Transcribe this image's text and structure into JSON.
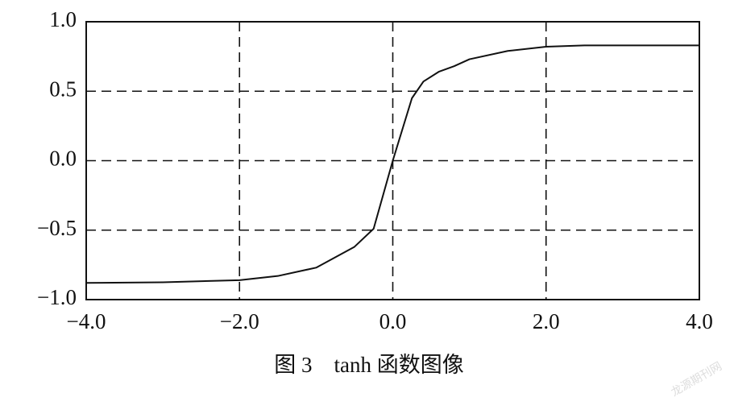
{
  "chart_data": {
    "type": "line",
    "caption": "图 3　tanh 函数图像",
    "watermark": "龙源期刊网",
    "x": [
      -4,
      -3,
      -2,
      -1.5,
      -1,
      -0.5,
      -0.25,
      0,
      0.25,
      0.4,
      0.6,
      0.8,
      1,
      1.5,
      2,
      2.5,
      3,
      4
    ],
    "series": [
      {
        "color": "#111111",
        "values": [
          -0.88,
          -0.875,
          -0.86,
          -0.83,
          -0.77,
          -0.62,
          -0.49,
          0,
          0.45,
          0.57,
          0.64,
          0.68,
          0.73,
          0.79,
          0.82,
          0.83,
          0.83,
          0.83
        ]
      }
    ],
    "xlim": [
      -4,
      4
    ],
    "ylim": [
      -1,
      1
    ],
    "xticks": [
      {
        "value": -4,
        "label": "−4.0"
      },
      {
        "value": -2,
        "label": "−2.0"
      },
      {
        "value": 0,
        "label": "0.0"
      },
      {
        "value": 2,
        "label": "2.0"
      },
      {
        "value": 4,
        "label": "4.0"
      }
    ],
    "yticks": [
      {
        "value": -1,
        "label": "−1.0"
      },
      {
        "value": -0.5,
        "label": "−0.5"
      },
      {
        "value": 0,
        "label": "0.0"
      },
      {
        "value": 0.5,
        "label": "0.5"
      },
      {
        "value": 1,
        "label": "1.0"
      }
    ],
    "grid": true
  }
}
